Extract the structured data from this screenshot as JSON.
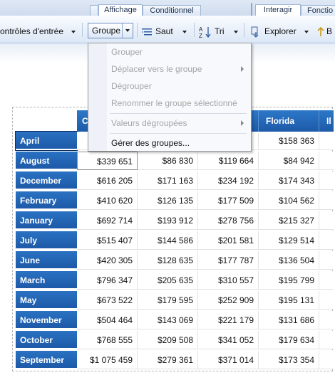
{
  "tabs": {
    "affichage": "Affichage",
    "conditionnel": "Conditionnel",
    "interagir": "Interagir",
    "fonctions": "Fonctio"
  },
  "toolbar": {
    "controles_entree": "ontrôles d'entrée",
    "groupe": "Groupe",
    "saut": "Saut",
    "tri": "Tri",
    "explorer": "Explorer",
    "cut_label": "B"
  },
  "menu": {
    "items": [
      {
        "label": "Grouper",
        "enabled": false
      },
      {
        "label": "Déplacer vers le groupe",
        "enabled": false,
        "submenu": true
      },
      {
        "label": "Dégrouper",
        "enabled": false
      },
      {
        "label": "Renommer le groupe sélectionné",
        "enabled": false
      },
      {
        "label": "Valeurs dégroupées",
        "enabled": false,
        "submenu": true
      },
      {
        "label": "Gérer des groupes...",
        "enabled": true
      }
    ]
  },
  "table": {
    "columns": [
      "C",
      "",
      "",
      "Florida",
      "Il"
    ],
    "rows": [
      {
        "month": "April",
        "values": [
          "",
          "",
          "",
          "$158 363"
        ]
      },
      {
        "month": "August",
        "values": [
          "$339 651",
          "$86 830",
          "$119 664",
          "$84 942"
        ]
      },
      {
        "month": "December",
        "values": [
          "$616 205",
          "$171 163",
          "$234 192",
          "$174 343"
        ]
      },
      {
        "month": "February",
        "values": [
          "$410 620",
          "$126 135",
          "$177 509",
          "$104 562"
        ]
      },
      {
        "month": "January",
        "values": [
          "$692 714",
          "$193 912",
          "$278 756",
          "$215 327"
        ]
      },
      {
        "month": "July",
        "values": [
          "$515 407",
          "$144 586",
          "$201 581",
          "$129 514"
        ]
      },
      {
        "month": "June",
        "values": [
          "$420 305",
          "$128 635",
          "$177 787",
          "$136 504"
        ]
      },
      {
        "month": "March",
        "values": [
          "$796 347",
          "$205 635",
          "$310 557",
          "$195 799"
        ]
      },
      {
        "month": "May",
        "values": [
          "$673 522",
          "$179 595",
          "$252 909",
          "$195 131"
        ]
      },
      {
        "month": "November",
        "values": [
          "$504 464",
          "$143 069",
          "$221 179",
          "$131 686"
        ]
      },
      {
        "month": "October",
        "values": [
          "$768 555",
          "$209 508",
          "$341 052",
          "$179 634"
        ]
      },
      {
        "month": "September",
        "values": [
          "$1 075 459",
          "$279 361",
          "$371 014",
          "$173 354"
        ]
      }
    ]
  }
}
